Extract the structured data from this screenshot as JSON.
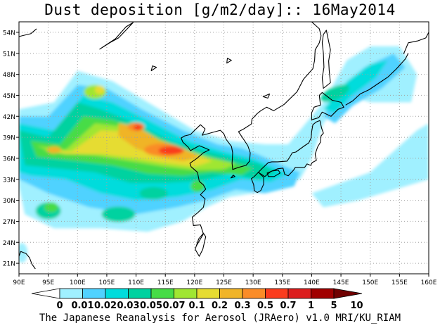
{
  "title": "Dust deposition [g/m2/day]:: 16May2014",
  "credit": "The Japanese Reanalysis for Aerosol (JRAero) v1.0 MRI/KU_RIAM",
  "map": {
    "lon_labels": [
      "90E",
      "95E",
      "100E",
      "105E",
      "110E",
      "115E",
      "120E",
      "125E",
      "130E",
      "135E",
      "140E",
      "145E",
      "150E",
      "155E",
      "160E"
    ],
    "lat_labels": [
      "54N",
      "51N",
      "48N",
      "45N",
      "42N",
      "39N",
      "36N",
      "33N",
      "30N",
      "27N",
      "24N",
      "21N"
    ],
    "lon_values": [
      90,
      95,
      100,
      105,
      110,
      115,
      120,
      125,
      130,
      135,
      140,
      145,
      150,
      155,
      160
    ],
    "lat_values": [
      54,
      51,
      48,
      45,
      42,
      39,
      36,
      33,
      30,
      27,
      24,
      21
    ],
    "extent": {
      "lon_min": 90,
      "lon_max": 160,
      "lat_min": 19.5,
      "lat_max": 55.5
    }
  },
  "colorbar": {
    "labels": [
      "0",
      "0.01",
      "0.02",
      "0.03",
      "0.05",
      "0.07",
      "0.1",
      "0.2",
      "0.3",
      "0.5",
      "0.7",
      "1",
      "5",
      "10"
    ],
    "colors": [
      "#ffffff",
      "#a0f0ff",
      "#50d2ff",
      "#00dcdc",
      "#00d2a0",
      "#46dc46",
      "#a0e632",
      "#e6dc32",
      "#f0b428",
      "#fa8c28",
      "#fa3c1e",
      "#dc1e1e",
      "#a00000",
      "#700000"
    ]
  }
}
